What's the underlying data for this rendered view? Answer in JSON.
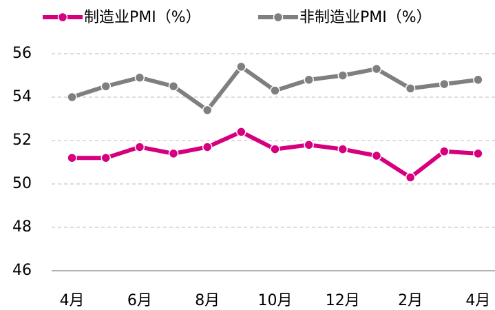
{
  "chart_data": {
    "type": "line",
    "categories": [
      "4月",
      null,
      "6月",
      null,
      "8月",
      null,
      "10月",
      null,
      "12月",
      null,
      "2月",
      null,
      "4月"
    ],
    "series": [
      {
        "name": "制造业PMI（%）",
        "color": "#d6007f",
        "values": [
          51.2,
          51.2,
          51.7,
          51.4,
          51.7,
          52.4,
          51.6,
          51.8,
          51.6,
          51.3,
          50.3,
          51.5,
          51.4
        ]
      },
      {
        "name": "非制造业PMI（%）",
        "color": "#7f7f7f",
        "values": [
          54.0,
          54.5,
          54.9,
          54.5,
          53.4,
          55.4,
          54.3,
          54.8,
          55.0,
          55.3,
          54.4,
          54.6,
          54.8
        ]
      }
    ],
    "ylim": [
      46,
      56
    ],
    "yticks": [
      46,
      48,
      50,
      52,
      54,
      56
    ],
    "grid": true
  }
}
